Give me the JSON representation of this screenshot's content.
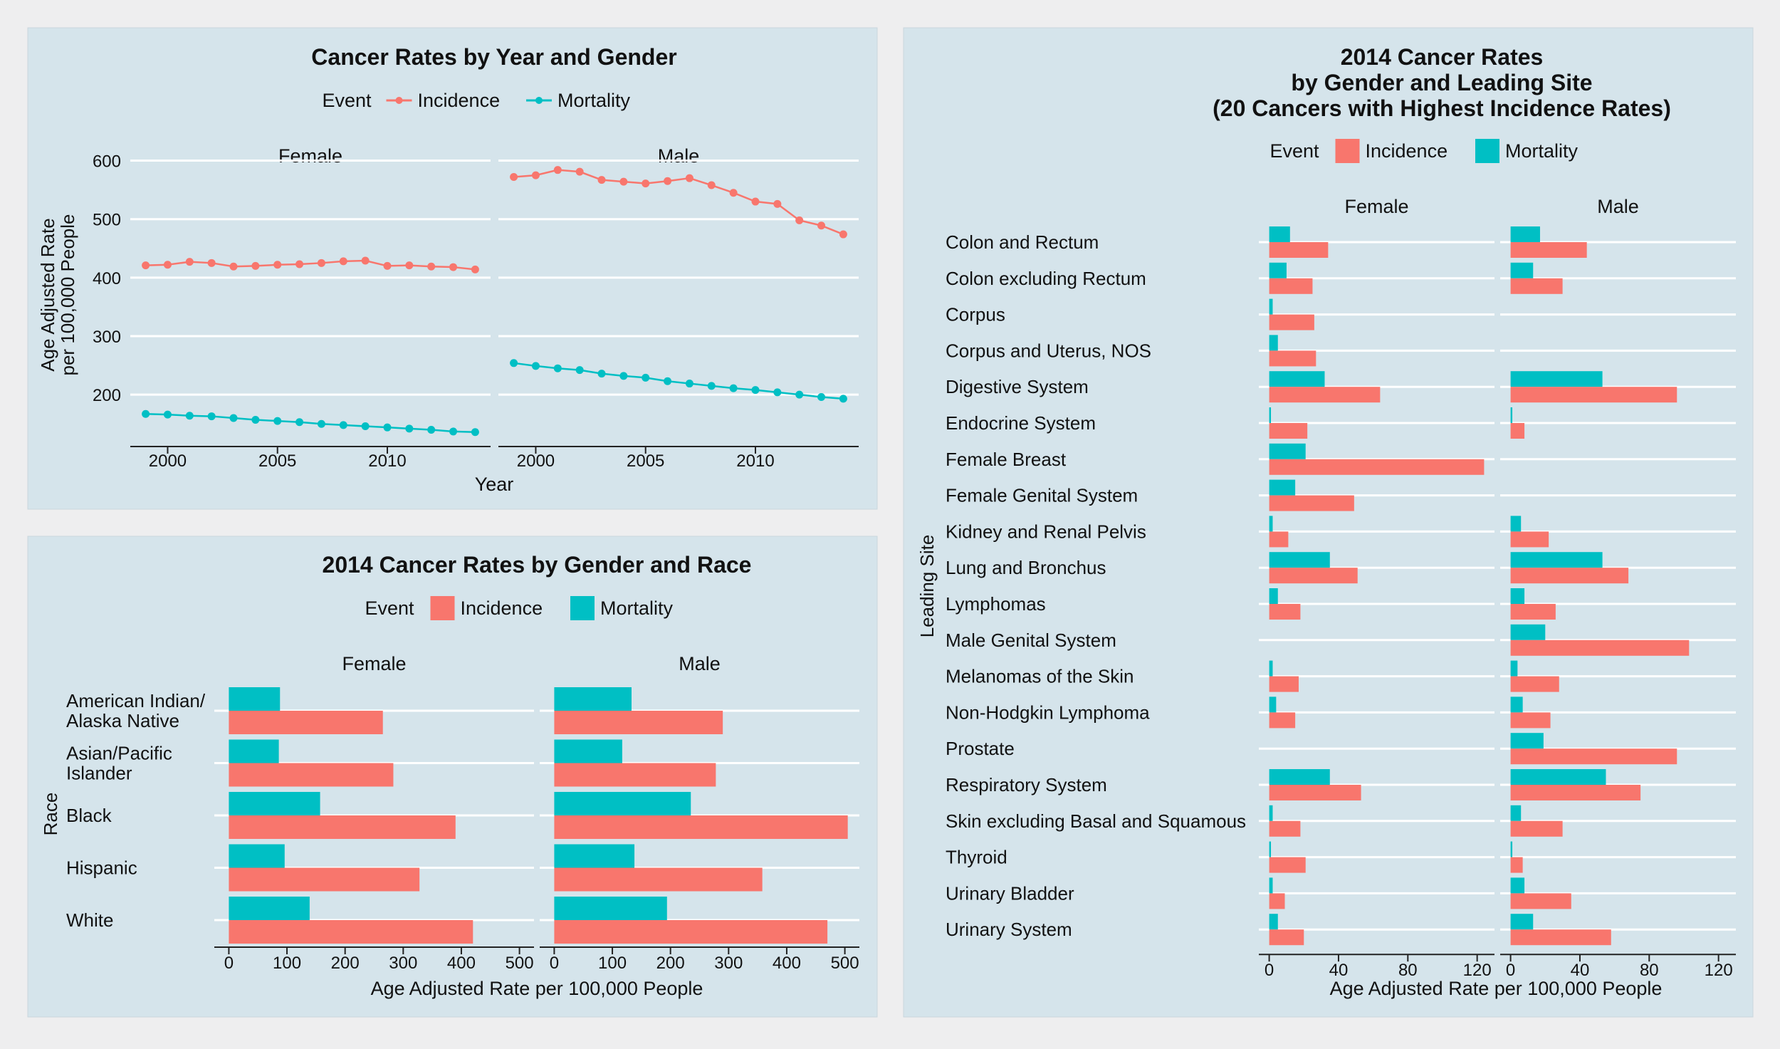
{
  "chart_data": [
    {
      "type": "line",
      "title": "Cancer Rates by Year and Gender",
      "xlabel": "Year",
      "ylabel_lines": [
        "Age Adjusted Rate",
        "per 100,000 People"
      ],
      "legend": {
        "title": "Event",
        "placement": "top",
        "entries": [
          "Incidence",
          "Mortality"
        ]
      },
      "colors": {
        "Incidence": "#f8766d",
        "Mortality": "#00bfc4"
      },
      "xlim": [
        1998.3,
        2014.7
      ],
      "ylim": [
        115,
        625
      ],
      "xticks": [
        2000,
        2005,
        2010
      ],
      "yticks": [
        200,
        300,
        400,
        500,
        600
      ],
      "grid": true,
      "x": [
        1999,
        2000,
        2001,
        2002,
        2003,
        2004,
        2005,
        2006,
        2007,
        2008,
        2009,
        2010,
        2011,
        2012,
        2013,
        2014
      ],
      "panels": [
        {
          "name": "Female",
          "series": [
            {
              "name": "Incidence",
              "values": [
                421,
                422,
                427,
                425,
                419,
                420,
                422,
                423,
                425,
                428,
                429,
                420,
                421,
                419,
                418,
                414
              ]
            },
            {
              "name": "Mortality",
              "values": [
                167,
                166,
                164,
                163,
                160,
                157,
                155,
                153,
                150,
                148,
                146,
                144,
                142,
                140,
                137,
                136
              ]
            }
          ]
        },
        {
          "name": "Male",
          "series": [
            {
              "name": "Incidence",
              "values": [
                572,
                575,
                584,
                581,
                567,
                564,
                561,
                565,
                570,
                558,
                545,
                530,
                526,
                498,
                489,
                474
              ]
            },
            {
              "name": "Mortality",
              "values": [
                254,
                249,
                245,
                242,
                236,
                232,
                229,
                223,
                219,
                215,
                211,
                208,
                204,
                200,
                196,
                193
              ]
            }
          ]
        }
      ]
    },
    {
      "type": "bar",
      "orientation": "horizontal",
      "title": "2014 Cancer Rates by Gender and Race",
      "xlabel": "Age Adjusted Rate per 100,000 People",
      "ylabel": "Race",
      "legend": {
        "title": "Event",
        "placement": "top",
        "entries": [
          "Incidence",
          "Mortality"
        ]
      },
      "colors": {
        "Incidence": "#f8766d",
        "Mortality": "#00bfc4"
      },
      "categories": [
        "American Indian/\nAlaska Native",
        "Asian/Pacific\nIslander",
        "Black",
        "Hispanic",
        "White"
      ],
      "xlim": [
        -25,
        525
      ],
      "xticks": [
        0,
        100,
        200,
        300,
        400,
        500
      ],
      "grid": true,
      "panels": [
        {
          "name": "Female",
          "series": [
            {
              "name": "Incidence",
              "values": [
                265,
                283,
                390,
                328,
                420
              ]
            },
            {
              "name": "Mortality",
              "values": [
                88,
                86,
                157,
                96,
                139
              ]
            }
          ]
        },
        {
          "name": "Male",
          "series": [
            {
              "name": "Incidence",
              "values": [
                290,
                278,
                505,
                358,
                470
              ]
            },
            {
              "name": "Mortality",
              "values": [
                133,
                117,
                235,
                138,
                194
              ]
            }
          ]
        }
      ]
    },
    {
      "type": "bar",
      "orientation": "horizontal",
      "title_lines": [
        "2014 Cancer Rates",
        "by Gender and Leading Site",
        "(20 Cancers with Highest Incidence Rates)"
      ],
      "xlabel": "Age Adjusted Rate per 100,000 People",
      "ylabel": "Leading Site",
      "legend": {
        "title": "Event",
        "placement": "top",
        "entries": [
          "Incidence",
          "Mortality"
        ]
      },
      "colors": {
        "Incidence": "#f8766d",
        "Mortality": "#00bfc4"
      },
      "categories": [
        "Colon and Rectum",
        "Colon excluding Rectum",
        "Corpus",
        "Corpus and Uterus, NOS",
        "Digestive System",
        "Endocrine System",
        "Female Breast",
        "Female Genital System",
        "Kidney and Renal Pelvis",
        "Lung and Bronchus",
        "Lymphomas",
        "Male Genital System",
        "Melanomas of the Skin",
        "Non-Hodgkin Lymphoma",
        "Prostate",
        "Respiratory System",
        "Skin excluding Basal and Squamous",
        "Thyroid",
        "Urinary Bladder",
        "Urinary System"
      ],
      "xlim": [
        -6,
        130
      ],
      "xticks": [
        0,
        40,
        80,
        120
      ],
      "grid": true,
      "panels": [
        {
          "name": "Female",
          "series": [
            {
              "name": "Incidence",
              "values": [
                34,
                25,
                26,
                27,
                64,
                22,
                124,
                49,
                11,
                51,
                18,
                null,
                17,
                15,
                null,
                53,
                18,
                21,
                9,
                20
              ]
            },
            {
              "name": "Mortality",
              "values": [
                12,
                10,
                2,
                5,
                32,
                1,
                21,
                15,
                2,
                35,
                5,
                null,
                2,
                4,
                null,
                35,
                2,
                1,
                2,
                5
              ]
            }
          ]
        },
        {
          "name": "Male",
          "series": [
            {
              "name": "Incidence",
              "values": [
                44,
                30,
                null,
                null,
                96,
                8,
                null,
                null,
                22,
                68,
                26,
                103,
                28,
                23,
                96,
                75,
                30,
                7,
                35,
                58
              ]
            },
            {
              "name": "Mortality",
              "values": [
                17,
                13,
                null,
                null,
                53,
                1,
                null,
                null,
                6,
                53,
                8,
                20,
                4,
                7,
                19,
                55,
                6,
                1,
                8,
                13
              ]
            }
          ]
        }
      ]
    }
  ]
}
